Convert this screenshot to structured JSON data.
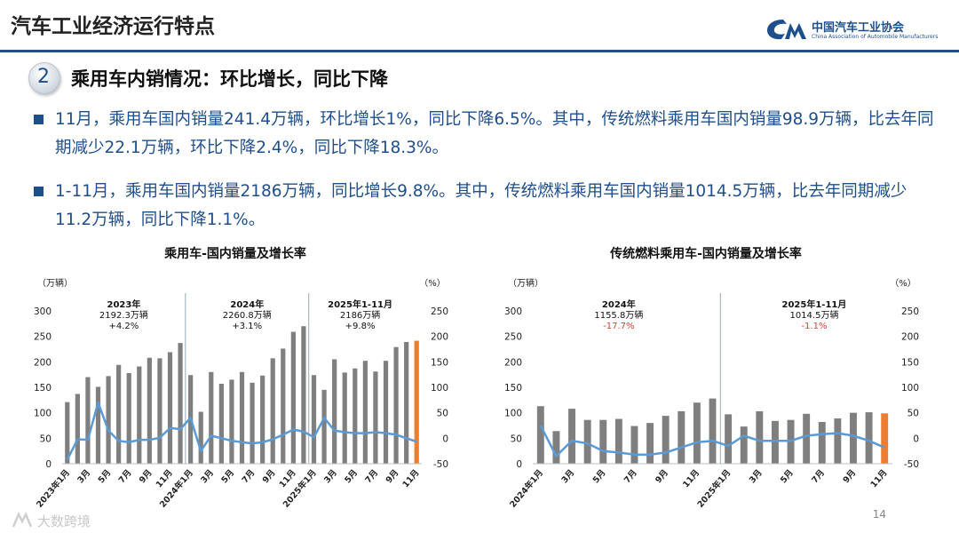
{
  "header": {
    "title": "汽车工业经济运行特点",
    "logo_cn": "中国汽车工业协会",
    "logo_en": "China Association of Automobile Manufacturers"
  },
  "section": {
    "number": "2",
    "title": "乘用车内销情况：环比增长，同比下降"
  },
  "bullets": [
    "11月，乘用车国内销量241.4万辆，环比增长1%，同比下降6.5%。其中，传统燃料乘用车国内销量98.9万辆，比去年同期减少22.1万辆，环比下降2.4%，同比下降18.3%。",
    "1-11月，乘用车国内销量2186万辆，同比增长9.8%。其中，传统燃料乘用车国内销量1014.5万辆，比去年同期减少11.2万辆，同比下降1.1%。"
  ],
  "colors": {
    "bar": "#7f7f7f",
    "highlight_bar": "#ed7d31",
    "line": "#5b9bd5",
    "negative_text": "#e03c31",
    "brand": "#1f4e8c"
  },
  "footer": {
    "page_number": "14",
    "brand": "大数跨境"
  },
  "chart_data": [
    {
      "type": "bar",
      "title": "乘用车-国内销量及增长率",
      "y_left_unit": "（万辆）",
      "y_right_unit": "（%）",
      "y_left_ticks": [
        "0",
        "50",
        "100",
        "150",
        "200",
        "250",
        "300"
      ],
      "y_right_ticks": [
        "-50",
        "0",
        "50",
        "100",
        "150",
        "200",
        "250"
      ],
      "ylim_left": [
        0,
        300
      ],
      "ylim_right": [
        -50,
        250
      ],
      "x_tick_labels": [
        "2023年1月",
        "3月",
        "5月",
        "7月",
        "9月",
        "11月",
        "2024年1月",
        "3月",
        "5月",
        "7月",
        "9月",
        "11月",
        "2025年1月",
        "3月",
        "5月",
        "7月",
        "9月",
        "11月"
      ],
      "x_tick_index": [
        0,
        2,
        4,
        6,
        8,
        10,
        12,
        14,
        16,
        18,
        20,
        22,
        24,
        26,
        28,
        30,
        32,
        34
      ],
      "annotations": [
        {
          "lines": [
            "2023年",
            "2192.3万辆",
            "+4.2%"
          ],
          "center_index": 5.5,
          "negative": false
        },
        {
          "lines": [
            "2024年",
            "2260.8万辆",
            "+3.1%"
          ],
          "center_index": 17.5,
          "negative": false
        },
        {
          "lines": [
            "2025年1-11月",
            "2186万辆",
            "+9.8%"
          ],
          "center_index": 28.5,
          "negative": false
        }
      ],
      "dividers": [
        11.5,
        23.5
      ],
      "series": [
        {
          "name": "国内销量",
          "kind": "bar",
          "axis": "left",
          "values": [
            121,
            137,
            170,
            151,
            172,
            194,
            178,
            191,
            208,
            207,
            219,
            237,
            174,
            102,
            180,
            157,
            165,
            180,
            159,
            173,
            207,
            226,
            259,
            270,
            174,
            145,
            205,
            179,
            187,
            202,
            181,
            202,
            229,
            239,
            241.4
          ],
          "highlight_last": true
        },
        {
          "name": "增长率",
          "kind": "line",
          "axis": "right",
          "values": [
            -42,
            -2,
            -3,
            70,
            15,
            -5,
            -8,
            -3,
            -3,
            1,
            20,
            18,
            40,
            -25,
            5,
            0,
            -5,
            -8,
            -10,
            -8,
            -2,
            7,
            17,
            13,
            2,
            40,
            15,
            12,
            10,
            10,
            12,
            10,
            7,
            0,
            -6.5
          ]
        }
      ]
    },
    {
      "type": "bar",
      "title": "传统燃料乘用车-国内销量及增长率",
      "y_left_unit": "（万辆）",
      "y_right_unit": "（%）",
      "y_left_ticks": [
        "0",
        "50",
        "100",
        "150",
        "200",
        "250",
        "300"
      ],
      "y_right_ticks": [
        "-50",
        "0",
        "50",
        "100",
        "150",
        "200",
        "250"
      ],
      "ylim_left": [
        0,
        300
      ],
      "ylim_right": [
        -50,
        250
      ],
      "x_tick_labels": [
        "2024年1月",
        "3月",
        "5月",
        "7月",
        "9月",
        "11月",
        "2025年1月",
        "3月",
        "5月",
        "7月",
        "9月",
        "11月"
      ],
      "x_tick_index": [
        0,
        2,
        4,
        6,
        8,
        10,
        12,
        14,
        16,
        18,
        20,
        22
      ],
      "annotations": [
        {
          "lines": [
            "2024年",
            "1155.8万辆",
            "-17.7%"
          ],
          "center_index": 5,
          "negative": true
        },
        {
          "lines": [
            "2025年1-11月",
            "1014.5万辆",
            "-1.1%"
          ],
          "center_index": 17.5,
          "negative": true
        }
      ],
      "dividers": [
        11.5
      ],
      "series": [
        {
          "name": "国内销量",
          "kind": "bar",
          "axis": "left",
          "values": [
            113,
            64,
            108,
            86,
            86,
            88,
            74,
            80,
            94,
            103,
            120,
            128,
            97,
            73,
            103,
            84,
            86,
            98,
            82,
            89,
            100,
            101,
            98.9
          ],
          "highlight_last": true
        },
        {
          "name": "增长率",
          "kind": "line",
          "axis": "right",
          "values": [
            25,
            -35,
            -5,
            -10,
            -25,
            -28,
            -32,
            -32,
            -28,
            -18,
            -8,
            -5,
            -15,
            5,
            -5,
            -5,
            -5,
            5,
            8,
            10,
            5,
            -5,
            -18.3
          ]
        }
      ]
    }
  ]
}
